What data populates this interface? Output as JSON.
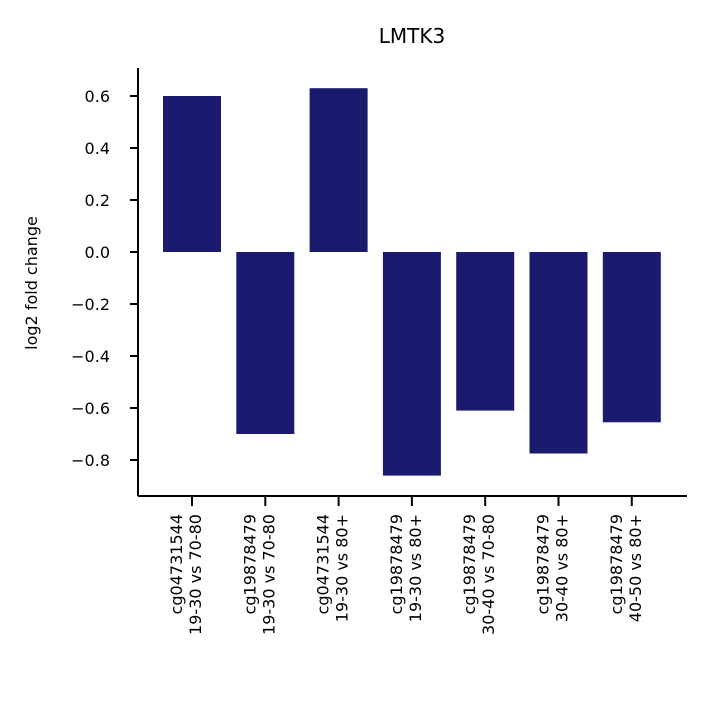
{
  "chart_data": {
    "type": "bar",
    "title": "LMTK3",
    "xlabel": "",
    "ylabel": "log2 fold change",
    "ylim": [
      -0.94,
      0.7
    ],
    "yticks": [
      "0.6",
      "0.4",
      "0.2",
      "0.0",
      "−0.2",
      "−0.4",
      "−0.6",
      "−0.8"
    ],
    "ytick_values": [
      0.6,
      0.4,
      0.2,
      0.0,
      -0.2,
      -0.4,
      -0.6,
      -0.8
    ],
    "grid": false,
    "bar_color": "#1a1a6e",
    "categories": [
      [
        "cg04731544",
        "19-30 vs 70-80"
      ],
      [
        "cg19878479",
        "19-30 vs 70-80"
      ],
      [
        "cg04731544",
        "19-30 vs 80+"
      ],
      [
        "cg19878479",
        "19-30 vs 80+"
      ],
      [
        "cg19878479",
        "30-40 vs 70-80"
      ],
      [
        "cg19878479",
        "30-40 vs 80+"
      ],
      [
        "cg19878479",
        "40-50 vs 80+"
      ]
    ],
    "values": [
      0.6,
      -0.7,
      0.63,
      -0.86,
      -0.61,
      -0.775,
      -0.655
    ]
  }
}
